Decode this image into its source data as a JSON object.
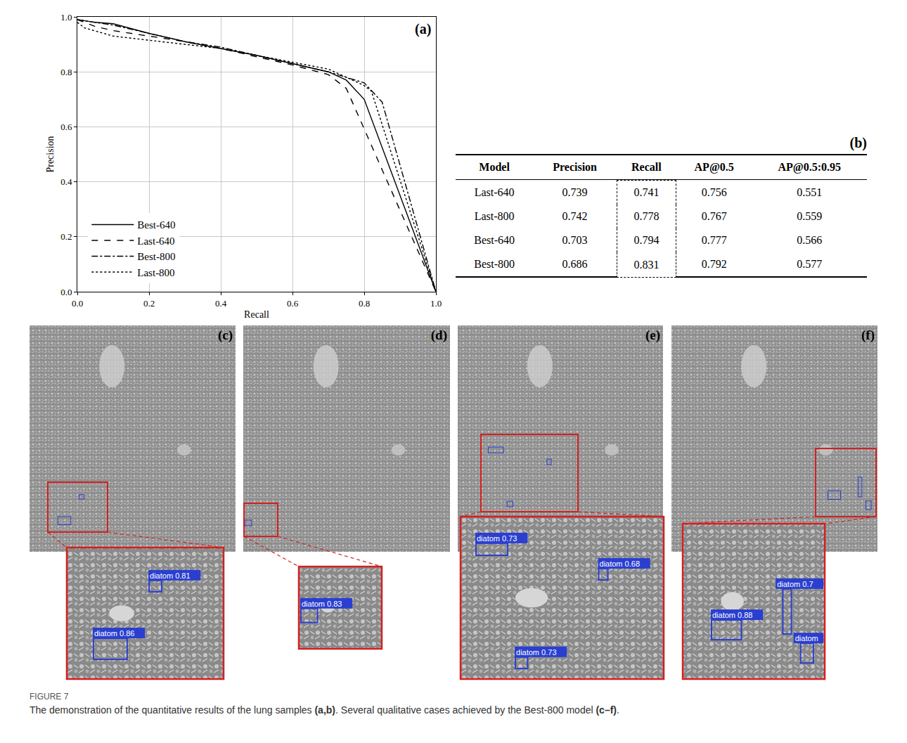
{
  "chart_data": {
    "type": "line",
    "x_label": "Recall",
    "y_label": "Precision",
    "annotations": [
      {
        "text": "(a)"
      }
    ],
    "xlim": [
      0,
      1
    ],
    "ylim": [
      0,
      1
    ],
    "xticks": [
      {
        "value": 0,
        "label": "0.0"
      },
      0.2,
      0.4,
      0.6,
      0.8,
      {
        "value": 1,
        "label": "1.0"
      }
    ],
    "yticks": [
      {
        "value": 0,
        "label": "0.0"
      },
      0.2,
      0.4,
      0.6,
      0.8,
      {
        "value": 1,
        "label": "1.0"
      }
    ],
    "grid": true,
    "legend": "lower left",
    "series": [
      {
        "name": "Best-640",
        "color": "#000000",
        "line_style": "solid",
        "x": [
          0,
          0.05,
          0.1,
          0.2,
          0.3,
          0.4,
          0.5,
          0.6,
          0.7,
          0.75,
          0.8,
          1.0
        ],
        "values": [
          0.99,
          0.98,
          0.975,
          0.94,
          0.91,
          0.885,
          0.86,
          0.83,
          0.8,
          0.77,
          0.7,
          0.0
        ]
      },
      {
        "name": "Last-640",
        "color": "#000000",
        "line_style": "dash",
        "x": [
          0,
          0.05,
          0.1,
          0.2,
          0.3,
          0.4,
          0.5,
          0.6,
          0.7,
          0.75,
          1.0
        ],
        "values": [
          0.99,
          0.965,
          0.95,
          0.93,
          0.91,
          0.885,
          0.855,
          0.825,
          0.79,
          0.74,
          0.0
        ]
      },
      {
        "name": "Best-800",
        "color": "#000000",
        "line_style": "dashdot",
        "x": [
          0,
          0.1,
          0.2,
          0.3,
          0.4,
          0.5,
          0.6,
          0.7,
          0.8,
          0.85,
          1.0
        ],
        "values": [
          0.99,
          0.97,
          0.94,
          0.91,
          0.89,
          0.86,
          0.83,
          0.8,
          0.76,
          0.69,
          0.0
        ]
      },
      {
        "name": "Last-800",
        "color": "#000000",
        "line_style": "dot",
        "x": [
          0,
          0.02,
          0.1,
          0.2,
          0.3,
          0.4,
          0.5,
          0.6,
          0.7,
          0.8,
          0.82,
          1.0
        ],
        "values": [
          0.98,
          0.96,
          0.93,
          0.915,
          0.9,
          0.885,
          0.86,
          0.835,
          0.81,
          0.75,
          0.73,
          0.0
        ]
      }
    ]
  },
  "table": {
    "label": "(b)",
    "header": [
      "Model",
      "Precision",
      "Recall",
      "AP@0.5",
      "AP@0.5:0.95"
    ],
    "highlight_column": "Recall",
    "rows": [
      [
        "Last-640",
        "0.739",
        "0.741",
        "0.756",
        "0.551"
      ],
      [
        "Last-800",
        "0.742",
        "0.778",
        "0.767",
        "0.559"
      ],
      [
        "Best-640",
        "0.703",
        "0.794",
        "0.777",
        "0.566"
      ],
      [
        "Best-800",
        "0.686",
        "0.831",
        "0.792",
        "0.577"
      ]
    ]
  },
  "panels": [
    {
      "label": "(c)",
      "detections": [
        "diatom 0.81",
        "diatom 0.86"
      ]
    },
    {
      "label": "(d)",
      "detections": [
        "diatom 0.83"
      ]
    },
    {
      "label": "(e)",
      "detections": [
        "diatom 0.73",
        "diatom 0.68",
        "diatom 0.73"
      ]
    },
    {
      "label": "(f)",
      "detections": [
        "diatom 0.88",
        "diatom 0.7",
        "diatom"
      ]
    }
  ],
  "caption": {
    "label": "FIGURE 7",
    "segments": [
      {
        "text": "The demonstration of the quantitative results of the lung samples ",
        "bold": false
      },
      {
        "text": "(a,b)",
        "bold": true
      },
      {
        "text": ". Several qualitative cases achieved by the Best-800 model ",
        "bold": false
      },
      {
        "text": "(c–f)",
        "bold": true
      },
      {
        "text": ".",
        "bold": false
      }
    ]
  }
}
